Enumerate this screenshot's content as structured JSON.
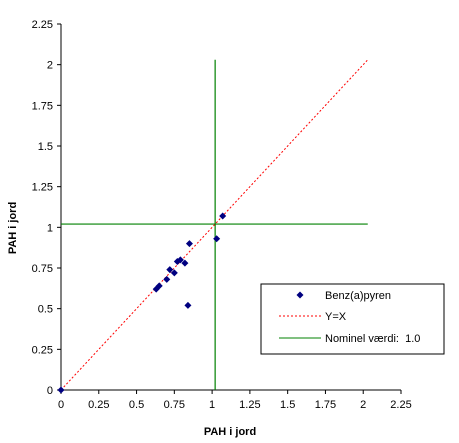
{
  "chart_data": {
    "type": "scatter",
    "title": "",
    "xlabel": "PAH i jord",
    "ylabel": "PAH i jord",
    "xlim": [
      0,
      2.25
    ],
    "ylim": [
      0,
      2.25
    ],
    "x_ticks": [
      "0",
      "0.25",
      "0.5",
      "0.75",
      "1",
      "1.25",
      "1.5",
      "1.75",
      "2",
      "2.25"
    ],
    "y_ticks": [
      "0",
      "0.25",
      "0.5",
      "0.75",
      "1",
      "1.25",
      "1.5",
      "1.75",
      "2",
      "2.25"
    ],
    "grid": false,
    "legend_position": "right",
    "series": [
      {
        "name": "Benz(a)pyren",
        "kind": "scatter",
        "color": "#000080",
        "marker": "diamond",
        "points": [
          [
            0,
            0
          ],
          [
            0.63,
            0.62
          ],
          [
            0.65,
            0.64
          ],
          [
            0.7,
            0.68
          ],
          [
            0.72,
            0.74
          ],
          [
            0.75,
            0.72
          ],
          [
            0.77,
            0.79
          ],
          [
            0.79,
            0.8
          ],
          [
            0.82,
            0.78
          ],
          [
            0.85,
            0.9
          ],
          [
            0.84,
            0.52
          ],
          [
            1.03,
            0.93
          ],
          [
            1.07,
            1.07
          ]
        ]
      },
      {
        "name": "Y=X",
        "kind": "line",
        "color": "#ff0000",
        "dash": "dotted",
        "points": [
          [
            0,
            0
          ],
          [
            2.03,
            2.03
          ]
        ]
      },
      {
        "name": "Nominel værdi:  1.0",
        "kind": "reference",
        "color": "#008000",
        "value": 1.02,
        "x_extent": [
          0,
          2.03
        ],
        "y_extent": [
          0,
          2.03
        ]
      }
    ]
  }
}
